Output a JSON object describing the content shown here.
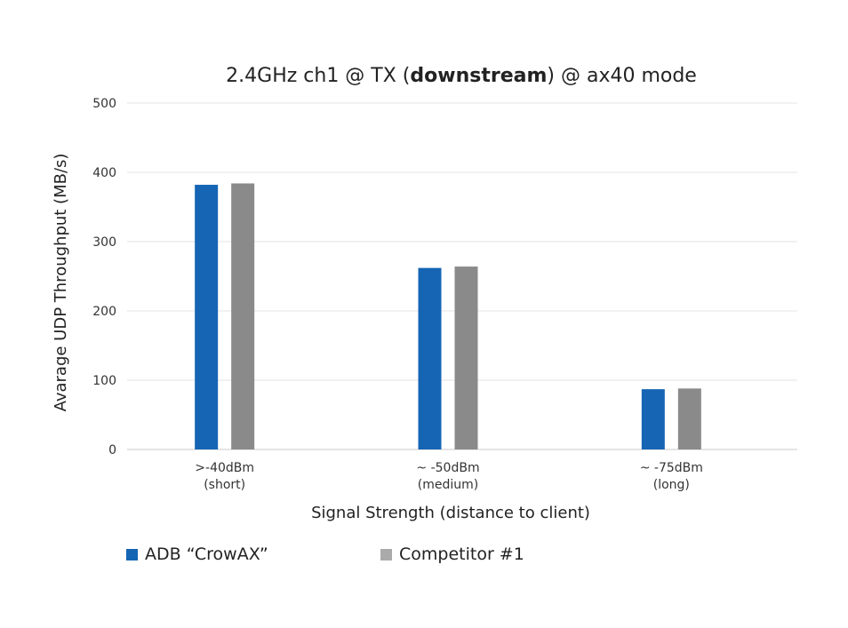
{
  "chart_data": {
    "type": "bar",
    "title": {
      "prefix": "2.4GHz ch1 @ TX (",
      "bold": "downstream",
      "suffix": ") @ ax40 mode"
    },
    "xlabel": "Signal Strength (distance to client)",
    "ylabel": "Avarage UDP Throughput (MB/s)",
    "ylim": [
      0,
      500
    ],
    "yticks": [
      0,
      100,
      200,
      300,
      400,
      500
    ],
    "grid": true,
    "legend_position": "bottom-left",
    "categories": [
      [
        ">-40dBm",
        "(short)"
      ],
      [
        "~ -50dBm",
        "(medium)"
      ],
      [
        "~ -75dBm",
        "(long)"
      ]
    ],
    "series": [
      {
        "name": "ADB “CrowAX”",
        "color": "#1565b4",
        "values": [
          382,
          262,
          87
        ]
      },
      {
        "name": "Competitor #1",
        "color": "#8a8a8a",
        "values": [
          384,
          264,
          88
        ]
      }
    ]
  }
}
